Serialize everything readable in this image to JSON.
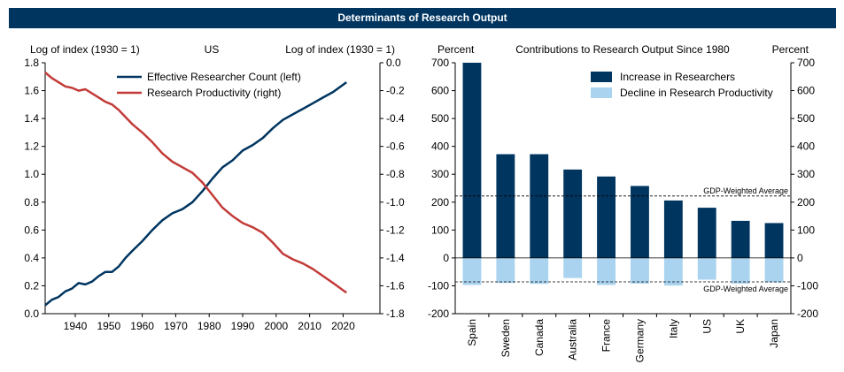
{
  "banner": {
    "title": "Determinants of Research Output"
  },
  "colors": {
    "navy": "#003560",
    "red": "#c23b38",
    "lightblue": "#a9d3ef",
    "banner": "#003560"
  },
  "chart_data": [
    {
      "type": "line",
      "title": "US",
      "left_axis_label": "Log of index (1930 = 1)",
      "right_axis_label": "Log of index (1930 = 1)",
      "xlim": [
        1931,
        2031
      ],
      "x_ticks": [
        1940,
        1950,
        1960,
        1970,
        1980,
        1990,
        2000,
        2010,
        2020
      ],
      "ylim_left": [
        0.0,
        1.8
      ],
      "y_ticks_left": [
        "0.0",
        "0.2",
        "0.4",
        "0.6",
        "0.8",
        "1.0",
        "1.2",
        "1.4",
        "1.6",
        "1.8"
      ],
      "ylim_right": [
        -1.8,
        0.0
      ],
      "y_ticks_right": [
        "-1.8",
        "-1.6",
        "-1.4",
        "-1.2",
        "-1.0",
        "-0.8",
        "-0.6",
        "-0.4",
        "-0.2",
        "0.0"
      ],
      "legend": [
        "Effective Researcher Count (left)",
        "Research Productivity (right)"
      ],
      "series": [
        {
          "name": "Effective Researcher Count (left)",
          "axis": "left",
          "x": [
            1931,
            1933,
            1935,
            1937,
            1939,
            1941,
            1943,
            1945,
            1947,
            1949,
            1951,
            1953,
            1955,
            1957,
            1960,
            1963,
            1966,
            1969,
            1972,
            1975,
            1978,
            1981,
            1984,
            1987,
            1990,
            1993,
            1996,
            1999,
            2002,
            2005,
            2008,
            2011,
            2014,
            2017,
            2021
          ],
          "y": [
            0.06,
            0.1,
            0.12,
            0.16,
            0.18,
            0.22,
            0.21,
            0.23,
            0.27,
            0.3,
            0.3,
            0.34,
            0.4,
            0.45,
            0.52,
            0.6,
            0.67,
            0.72,
            0.75,
            0.8,
            0.88,
            0.97,
            1.05,
            1.1,
            1.17,
            1.21,
            1.26,
            1.33,
            1.39,
            1.43,
            1.47,
            1.51,
            1.55,
            1.59,
            1.66
          ]
        },
        {
          "name": "Research Productivity (right)",
          "axis": "right",
          "x": [
            1931,
            1933,
            1935,
            1937,
            1939,
            1941,
            1943,
            1945,
            1947,
            1949,
            1951,
            1953,
            1955,
            1957,
            1960,
            1963,
            1966,
            1969,
            1972,
            1975,
            1978,
            1981,
            1984,
            1987,
            1990,
            1993,
            1996,
            1999,
            2002,
            2005,
            2008,
            2011,
            2014,
            2017,
            2021
          ],
          "y": [
            -0.07,
            -0.11,
            -0.14,
            -0.17,
            -0.18,
            -0.2,
            -0.19,
            -0.22,
            -0.25,
            -0.28,
            -0.3,
            -0.34,
            -0.39,
            -0.44,
            -0.5,
            -0.57,
            -0.65,
            -0.71,
            -0.75,
            -0.79,
            -0.86,
            -0.95,
            -1.04,
            -1.1,
            -1.15,
            -1.18,
            -1.22,
            -1.29,
            -1.37,
            -1.41,
            -1.44,
            -1.48,
            -1.53,
            -1.58,
            -1.65
          ]
        }
      ]
    },
    {
      "type": "bar",
      "title": "Contributions to Research Output Since 1980",
      "left_axis_label": "Percent",
      "right_axis_label": "Percent",
      "ylim": [
        -200,
        700
      ],
      "y_ticks": [
        "-200",
        "-100",
        "0",
        "100",
        "200",
        "300",
        "400",
        "500",
        "600",
        "700"
      ],
      "categories": [
        "Spain",
        "Sweden",
        "Canada",
        "Australia",
        "France",
        "Germany",
        "Italy",
        "US",
        "UK",
        "Japan"
      ],
      "legend": [
        "Increase in Researchers",
        "Decline in Research Productivity"
      ],
      "series": [
        {
          "name": "Increase in Researchers",
          "values": [
            700,
            372,
            372,
            317,
            292,
            258,
            206,
            180,
            133,
            125
          ]
        },
        {
          "name": "Decline in Research Productivity",
          "values": [
            -97,
            -90,
            -93,
            -72,
            -97,
            -92,
            -99,
            -78,
            -92,
            -88
          ]
        }
      ],
      "reference_lines": [
        {
          "label": "GDP-Weighted Average",
          "value": 222
        },
        {
          "label": "GDP-Weighted Average",
          "value": -86
        }
      ]
    }
  ]
}
